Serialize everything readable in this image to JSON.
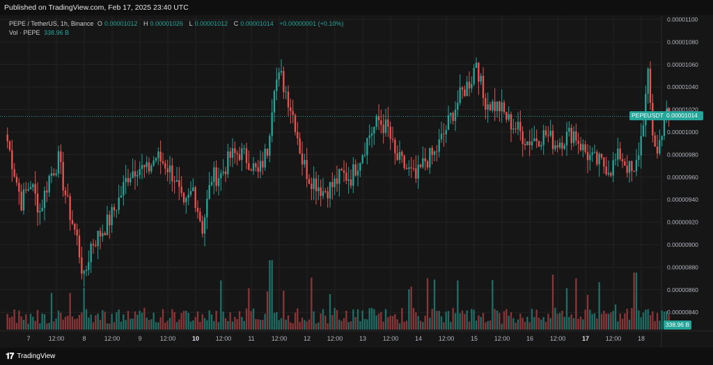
{
  "header": {
    "published_label": "Published on TradingView.com, Feb 17, 2025 23:40 UTC"
  },
  "legend": {
    "symbol": "PEPE / TetherUS, 1h, Binance",
    "o_label": "O",
    "o_value": "0.00001012",
    "h_label": "H",
    "h_value": "0.00001026",
    "l_label": "L",
    "l_value": "0.00001012",
    "c_label": "C",
    "c_value": "0.00001014",
    "change": "+0.00000001 (+0.10%)",
    "vol_label": "Vol · PEPE",
    "vol_value": "338.96 B"
  },
  "price_badge": {
    "symbol": "PEPEUSDT",
    "price": "0.00001014"
  },
  "volume_badge": "338.96 B",
  "footer": {
    "brand": "TradingView"
  },
  "colors": {
    "up": "#26a69a",
    "down": "#ef5350",
    "background": "#161616",
    "grid": "#232323"
  },
  "chart_data": {
    "type": "candlestick",
    "symbol": "PEPE / TetherUS",
    "interval": "1h",
    "ylim": [
      8.2e-06,
      1.1e-05
    ],
    "y_ticks": [
      "0.00001100",
      "0.00001080",
      "0.00001060",
      "0.00001040",
      "0.00001020",
      "0.00001000",
      "0.00000980",
      "0.00000960",
      "0.00000940",
      "0.00000920",
      "0.00000900",
      "0.00000880",
      "0.00000860",
      "0.00000840"
    ],
    "x_ticks": [
      "7",
      "12:00",
      "8",
      "12:00",
      "9",
      "12:00",
      "10",
      "12:00",
      "11",
      "12:00",
      "12",
      "12:00",
      "13",
      "12:00",
      "14",
      "12:00",
      "15",
      "12:00",
      "16",
      "12:00",
      "17",
      "12:00",
      "18"
    ],
    "x_tick_bold": [
      false,
      false,
      false,
      false,
      false,
      false,
      true,
      false,
      false,
      false,
      false,
      false,
      false,
      false,
      false,
      false,
      false,
      false,
      false,
      false,
      true,
      false,
      false
    ],
    "last_price": 1.014e-05,
    "candles_per_tick": 12,
    "close_path": [
      [
        0,
        9.92e-06
      ],
      [
        3,
        9.65e-06
      ],
      [
        6,
        9.38e-06
      ],
      [
        10,
        9.55e-06
      ],
      [
        14,
        9.3e-06
      ],
      [
        18,
        9.6e-06
      ],
      [
        22,
        9.75e-06
      ],
      [
        26,
        9.35e-06
      ],
      [
        30,
        9.05e-06
      ],
      [
        33,
        8.68e-06
      ],
      [
        36,
        9e-06
      ],
      [
        40,
        9.1e-06
      ],
      [
        44,
        9.22e-06
      ],
      [
        48,
        9.4e-06
      ],
      [
        52,
        9.62e-06
      ],
      [
        56,
        9.7e-06
      ],
      [
        60,
        9.65e-06
      ],
      [
        64,
        9.78e-06
      ],
      [
        68,
        9.72e-06
      ],
      [
        72,
        9.6e-06
      ],
      [
        76,
        9.3e-06
      ],
      [
        80,
        9.5e-06
      ],
      [
        84,
        9.15e-06
      ],
      [
        88,
        9.6e-06
      ],
      [
        92,
        9.62e-06
      ],
      [
        96,
        9.78e-06
      ],
      [
        100,
        9.82e-06
      ],
      [
        104,
        9.75e-06
      ],
      [
        108,
        9.62e-06
      ],
      [
        112,
        9.85e-06
      ],
      [
        115,
        1.045e-05
      ],
      [
        118,
        1.048e-05
      ],
      [
        121,
        1.03e-05
      ],
      [
        124,
        1.008e-05
      ],
      [
        127,
        9.75e-06
      ],
      [
        130,
        9.6e-06
      ],
      [
        133,
        9.55e-06
      ],
      [
        136,
        9.48e-06
      ],
      [
        140,
        9.52e-06
      ],
      [
        144,
        9.62e-06
      ],
      [
        148,
        9.6e-06
      ],
      [
        152,
        9.78e-06
      ],
      [
        156,
        9.98e-06
      ],
      [
        160,
        1.01e-05
      ],
      [
        164,
        1.002e-05
      ],
      [
        167,
        9.78e-06
      ],
      [
        170,
        9.72e-06
      ],
      [
        173,
        9.65e-06
      ],
      [
        176,
        9.58e-06
      ],
      [
        180,
        9.75e-06
      ],
      [
        184,
        9.8e-06
      ],
      [
        188,
        9.98e-06
      ],
      [
        192,
        1.018e-05
      ],
      [
        196,
        1.035e-05
      ],
      [
        200,
        1.048e-05
      ],
      [
        202,
        1.065e-05
      ],
      [
        205,
        1.03e-05
      ],
      [
        208,
        1.025e-05
      ],
      [
        212,
        1.022e-05
      ],
      [
        216,
        1.01e-05
      ],
      [
        220,
        1.002e-05
      ],
      [
        224,
        9.92e-06
      ],
      [
        228,
        9.95e-06
      ],
      [
        232,
        9.98e-06
      ],
      [
        236,
        9.9e-06
      ],
      [
        240,
        9.95e-06
      ],
      [
        244,
        1e-05
      ],
      [
        248,
        9.85e-06
      ],
      [
        252,
        9.75e-06
      ],
      [
        256,
        9.72e-06
      ],
      [
        260,
        9.68e-06
      ],
      [
        264,
        9.8e-06
      ],
      [
        267,
        9.7e-06
      ],
      [
        270,
        9.6e-06
      ],
      [
        273,
        9.95e-06
      ],
      [
        276,
        1.048e-05
      ],
      [
        278,
        1e-05
      ],
      [
        280,
        9.8e-06
      ],
      [
        283,
        1.015e-05
      ],
      [
        285,
        1.014e-05
      ]
    ],
    "volume_ylim": [
      0,
      100
    ],
    "volume_last": "338.96 B"
  }
}
